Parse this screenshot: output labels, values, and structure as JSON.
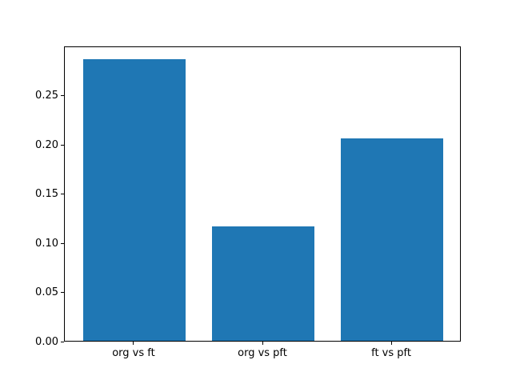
{
  "figure": {
    "background": "#ffffff"
  },
  "chart_data": {
    "type": "bar",
    "categories": [
      "org vs ft",
      "org vs pft",
      "ft vs pft"
    ],
    "values": [
      0.286,
      0.116,
      0.206
    ],
    "x": [
      0,
      1,
      2
    ],
    "bar_width": 0.8,
    "bar_color": "#1f77b4",
    "xlim": [
      -0.54,
      2.54
    ],
    "ylim": [
      0,
      0.3
    ],
    "yticks": [
      0,
      0.05,
      0.1,
      0.15,
      0.2,
      0.25
    ],
    "ytick_labels": [
      "0.00",
      "0.05",
      "0.10",
      "0.15",
      "0.20",
      "0.25"
    ],
    "grid": false,
    "legend_position": "none",
    "plot_background": "#ffffff",
    "spine_color": "#000000",
    "tick_color": "#000000",
    "tick_label_color": "#000000"
  }
}
